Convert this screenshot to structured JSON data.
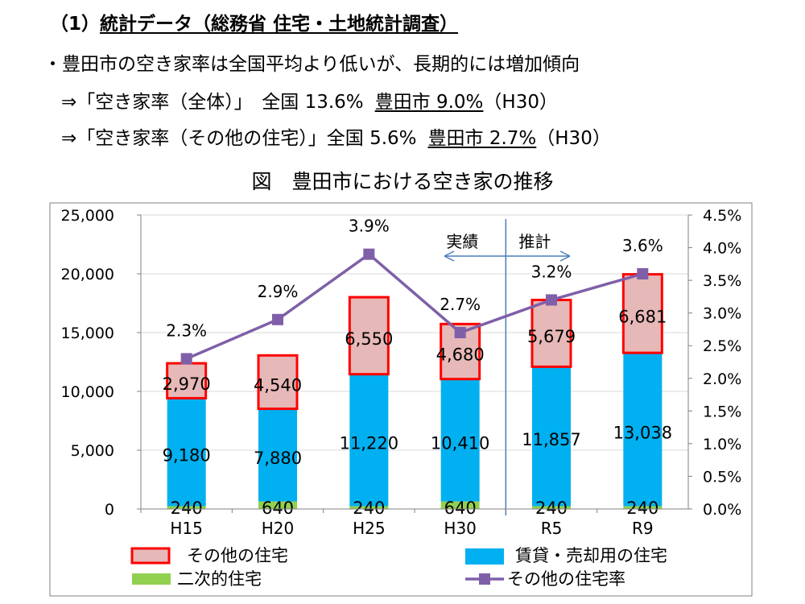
{
  "header": {
    "heading_prefix": "（1）",
    "heading_main": "統計データ（総務省 住宅・土地統計調査）",
    "line1": "・豊田市の空き家率は全国平均より低いが、長期的には増加傾向",
    "line2_a": "⇒「空き家率（全体）」　全国 13.6%",
    "line2_b": "豊田市 9.0%",
    "line2_c": "（H30）",
    "line3_a": "⇒「空き家率（その他の住宅）」全国 5.6%",
    "line3_b": "豊田市 2.7%",
    "line3_c": "（H30）"
  },
  "chart_data": {
    "type": "bar",
    "title": "図　豊田市における空き家の推移",
    "categories": [
      "H15",
      "H20",
      "H25",
      "H30",
      "R5",
      "R9"
    ],
    "series": [
      {
        "name": "二次的住宅",
        "kind": "stacked-bar",
        "color": "#92D050",
        "values": [
          240,
          640,
          240,
          640,
          240,
          240
        ]
      },
      {
        "name": "賃貸・売却用の住宅",
        "kind": "stacked-bar",
        "color": "#00B0F0",
        "values": [
          9180,
          7880,
          11220,
          10410,
          11857,
          13038
        ]
      },
      {
        "name": "その他の住宅",
        "kind": "stacked-bar",
        "color": "#E6B8B7",
        "border": "#FF0000",
        "values": [
          2970,
          4540,
          6550,
          4680,
          5679,
          6681
        ]
      },
      {
        "name": "その他の住宅率",
        "kind": "line",
        "axis": "right",
        "color": "#7F5FA8",
        "values": [
          2.3,
          2.9,
          3.9,
          2.7,
          3.2,
          3.6
        ],
        "labels": [
          "2.3%",
          "2.9%",
          "3.9%",
          "2.7%",
          "3.2%",
          "3.6%"
        ]
      }
    ],
    "y_left": {
      "min": 0,
      "max": 25000,
      "ticks": [
        "0",
        "5,000",
        "10,000",
        "15,000",
        "20,000",
        "25,000"
      ]
    },
    "y_right": {
      "min": 0,
      "max": 4.5,
      "ticks": [
        "0.0%",
        "0.5%",
        "1.0%",
        "1.5%",
        "2.0%",
        "2.5%",
        "3.0%",
        "3.5%",
        "4.0%",
        "4.5%"
      ]
    },
    "bar_labels": {
      "二次的住宅": [
        "240",
        "640",
        "240",
        "640",
        "240",
        "240"
      ],
      "賃貸・売却用の住宅": [
        "9,180",
        "7,880",
        "11,220",
        "10,410",
        "11,857",
        "13,038"
      ],
      "その他の住宅": [
        "2,970",
        "4,540",
        "6,550",
        "4,680",
        "5,679",
        "6,681"
      ]
    },
    "annotations": {
      "actual": "実績",
      "estimate": "推計"
    },
    "grid": true,
    "legend_position": "bottom"
  }
}
